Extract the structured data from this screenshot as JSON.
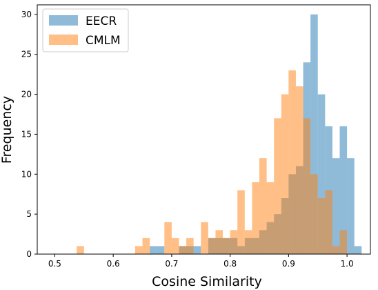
{
  "chart_data": {
    "type": "bar",
    "xlabel": "Cosine Similarity",
    "ylabel": "Frequency",
    "xlim": [
      0.5,
      1.0
    ],
    "ylim": [
      0,
      30
    ],
    "xticks": [
      "0.5",
      "0.6",
      "0.7",
      "0.8",
      "0.9",
      "1.0"
    ],
    "yticks": [
      "0",
      "5",
      "10",
      "15",
      "20",
      "25",
      "30"
    ],
    "bin_width": 0.0125,
    "legend_position": "top-left",
    "grid": false,
    "series": [
      {
        "name": "EECR",
        "color": "#1f77b4",
        "bins": [
          {
            "x0": 0.6625,
            "count": 1
          },
          {
            "x0": 0.675,
            "count": 1
          },
          {
            "x0": 0.7125,
            "count": 1
          },
          {
            "x0": 0.725,
            "count": 1
          },
          {
            "x0": 0.7375,
            "count": 1
          },
          {
            "x0": 0.7625,
            "count": 2
          },
          {
            "x0": 0.775,
            "count": 2
          },
          {
            "x0": 0.7875,
            "count": 2
          },
          {
            "x0": 0.8,
            "count": 2
          },
          {
            "x0": 0.8125,
            "count": 1
          },
          {
            "x0": 0.825,
            "count": 2
          },
          {
            "x0": 0.8375,
            "count": 2
          },
          {
            "x0": 0.85,
            "count": 3
          },
          {
            "x0": 0.8625,
            "count": 4
          },
          {
            "x0": 0.875,
            "count": 5
          },
          {
            "x0": 0.8875,
            "count": 7
          },
          {
            "x0": 0.9,
            "count": 10
          },
          {
            "x0": 0.9125,
            "count": 11
          },
          {
            "x0": 0.925,
            "count": 24
          },
          {
            "x0": 0.9375,
            "count": 30
          },
          {
            "x0": 0.95,
            "count": 20
          },
          {
            "x0": 0.9625,
            "count": 16
          },
          {
            "x0": 0.975,
            "count": 12
          },
          {
            "x0": 0.9875,
            "count": 16
          },
          {
            "x0": 1.0,
            "count": 12
          },
          {
            "x0": 1.0125,
            "count": 1
          }
        ]
      },
      {
        "name": "CMLM",
        "color": "#ff7f0e",
        "bins": [
          {
            "x0": 0.5375,
            "count": 1
          },
          {
            "x0": 0.6375,
            "count": 1
          },
          {
            "x0": 0.65,
            "count": 2
          },
          {
            "x0": 0.6875,
            "count": 4
          },
          {
            "x0": 0.7,
            "count": 2
          },
          {
            "x0": 0.7125,
            "count": 1
          },
          {
            "x0": 0.725,
            "count": 2
          },
          {
            "x0": 0.75,
            "count": 4
          },
          {
            "x0": 0.7625,
            "count": 2
          },
          {
            "x0": 0.775,
            "count": 3
          },
          {
            "x0": 0.7875,
            "count": 2
          },
          {
            "x0": 0.8,
            "count": 3
          },
          {
            "x0": 0.8125,
            "count": 8
          },
          {
            "x0": 0.825,
            "count": 3
          },
          {
            "x0": 0.8375,
            "count": 9
          },
          {
            "x0": 0.85,
            "count": 12
          },
          {
            "x0": 0.8625,
            "count": 9
          },
          {
            "x0": 0.875,
            "count": 17
          },
          {
            "x0": 0.8875,
            "count": 20
          },
          {
            "x0": 0.9,
            "count": 23
          },
          {
            "x0": 0.9125,
            "count": 21
          },
          {
            "x0": 0.925,
            "count": 17
          },
          {
            "x0": 0.9375,
            "count": 10
          },
          {
            "x0": 0.95,
            "count": 7
          },
          {
            "x0": 0.9625,
            "count": 8
          },
          {
            "x0": 0.975,
            "count": 1
          },
          {
            "x0": 0.9875,
            "count": 3
          }
        ]
      }
    ]
  }
}
